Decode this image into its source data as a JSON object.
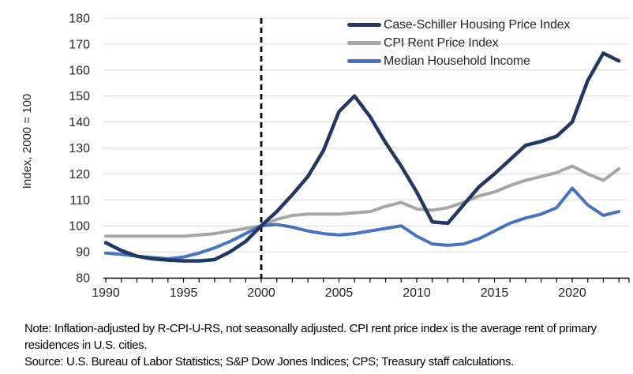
{
  "chart_data": {
    "type": "line",
    "title": "",
    "ylabel": "Index, 2000 = 100",
    "ylim": [
      80,
      180
    ],
    "ytick_step": 10,
    "xticks": [
      1990,
      1995,
      2000,
      2005,
      2010,
      2015,
      2020
    ],
    "reference_line_x": 2000,
    "grid": "horizontal",
    "legend_position": "top-right",
    "x": [
      1990,
      1991,
      1992,
      1993,
      1994,
      1995,
      1996,
      1997,
      1998,
      1999,
      2000,
      2001,
      2002,
      2003,
      2004,
      2005,
      2006,
      2007,
      2008,
      2009,
      2010,
      2011,
      2012,
      2013,
      2014,
      2015,
      2016,
      2017,
      2018,
      2019,
      2020,
      2021,
      2022,
      2023
    ],
    "series": [
      {
        "name": "Case-Schiller Housing Price Index",
        "color": "#1f3864",
        "stroke_width": 4.5,
        "values": [
          93.5,
          90.5,
          88.3,
          87.3,
          86.8,
          86.5,
          86.5,
          87,
          90,
          94,
          100,
          105.5,
          112,
          119,
          129,
          144,
          150,
          142,
          132,
          123,
          113,
          101.5,
          101,
          108,
          115,
          120,
          125.5,
          131,
          132.5,
          134.5,
          140,
          156,
          166.5,
          163.5
        ]
      },
      {
        "name": "CPI Rent Price Index",
        "color": "#a6a6a6",
        "stroke_width": 4,
        "values": [
          96,
          96,
          96,
          96,
          96,
          96,
          96.5,
          97,
          98,
          99,
          100,
          102.5,
          104,
          104.5,
          104.5,
          104.5,
          105,
          105.5,
          107.5,
          109,
          106.5,
          106,
          107,
          109,
          111.5,
          113,
          115.5,
          117.5,
          119,
          120.5,
          123,
          120,
          117.5,
          122
        ]
      },
      {
        "name": "Median Household Income",
        "color": "#4472c4",
        "stroke_width": 4,
        "values": [
          89.5,
          89,
          88.3,
          87.8,
          87.3,
          88,
          89.5,
          91.5,
          94,
          97,
          100,
          100.5,
          99.5,
          98,
          97,
          96.5,
          97,
          98,
          99,
          100,
          96,
          93,
          92.5,
          93,
          95,
          98,
          101,
          103,
          104.5,
          107,
          114.5,
          108,
          104,
          105.5
        ]
      }
    ],
    "axis_color": "#000000",
    "grid_color": "#d9d9d9",
    "tick_label_color": "#262626"
  },
  "notes": {
    "note": "Note: Inflation-adjusted by R-CPI-U-RS, not seasonally adjusted. CPI rent price index is the average rent of primary residences in U.S. cities.",
    "source": "Source: U.S. Bureau of Labor Statistics; S&P Dow Jones Indices; CPS; Treasury staff calculations."
  }
}
